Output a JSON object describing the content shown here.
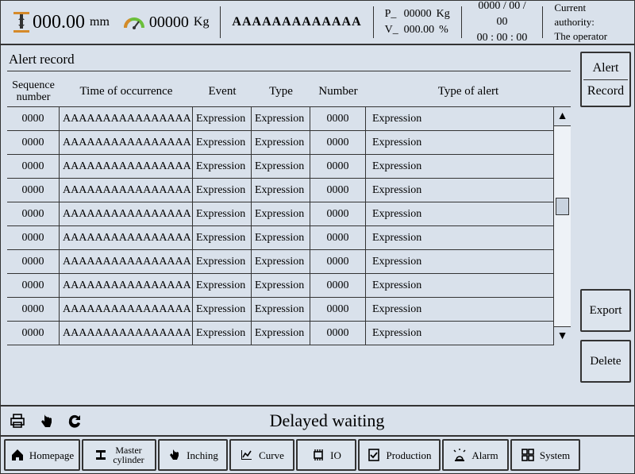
{
  "top": {
    "distance_value": "000.00",
    "distance_unit": "mm",
    "weight_value": "00000",
    "weight_unit": "Kg",
    "aaaa": "AAAAAAAAAAAAA",
    "p_label": "P_",
    "p_value": "00000",
    "p_unit": "Kg",
    "v_label": "V_",
    "v_value": "000.00",
    "v_unit": "%",
    "date": "0000 / 00 / 00",
    "time": "00 : 00 : 00",
    "auth_label": "Current authority:",
    "auth_value": "The operator"
  },
  "panel": {
    "title": "Alert record",
    "cols": {
      "seq1": "Sequence",
      "seq2": "number",
      "time": "Time of occurrence",
      "event": "Event",
      "type": "Type",
      "num": "Number",
      "alerttype": "Type of alert"
    },
    "rows": [
      {
        "seq": "0000",
        "time": "AAAAAAAAAAAAAAAA",
        "event": "Expression",
        "type": "Expression",
        "num": "0000",
        "alerttype": "Expression"
      },
      {
        "seq": "0000",
        "time": "AAAAAAAAAAAAAAAA",
        "event": "Expression",
        "type": "Expression",
        "num": "0000",
        "alerttype": "Expression"
      },
      {
        "seq": "0000",
        "time": "AAAAAAAAAAAAAAAA",
        "event": "Expression",
        "type": "Expression",
        "num": "0000",
        "alerttype": "Expression"
      },
      {
        "seq": "0000",
        "time": "AAAAAAAAAAAAAAAA",
        "event": "Expression",
        "type": "Expression",
        "num": "0000",
        "alerttype": "Expression"
      },
      {
        "seq": "0000",
        "time": "AAAAAAAAAAAAAAAA",
        "event": "Expression",
        "type": "Expression",
        "num": "0000",
        "alerttype": "Expression"
      },
      {
        "seq": "0000",
        "time": "AAAAAAAAAAAAAAAA",
        "event": "Expression",
        "type": "Expression",
        "num": "0000",
        "alerttype": "Expression"
      },
      {
        "seq": "0000",
        "time": "AAAAAAAAAAAAAAAA",
        "event": "Expression",
        "type": "Expression",
        "num": "0000",
        "alerttype": "Expression"
      },
      {
        "seq": "0000",
        "time": "AAAAAAAAAAAAAAAA",
        "event": "Expression",
        "type": "Expression",
        "num": "0000",
        "alerttype": "Expression"
      },
      {
        "seq": "0000",
        "time": "AAAAAAAAAAAAAAAA",
        "event": "Expression",
        "type": "Expression",
        "num": "0000",
        "alerttype": "Expression"
      },
      {
        "seq": "0000",
        "time": "AAAAAAAAAAAAAAAA",
        "event": "Expression",
        "type": "Expression",
        "num": "0000",
        "alerttype": "Expression"
      }
    ]
  },
  "side": {
    "alert": "Alert",
    "record": "Record",
    "export": "Export",
    "delete": "Delete"
  },
  "status": {
    "text": "Delayed waiting"
  },
  "nav": {
    "homepage": "Homepage",
    "master1": "Master",
    "master2": "cylinder",
    "inching": "Inching",
    "curve": "Curve",
    "io": "IO",
    "production": "Production",
    "alarm": "Alarm",
    "system": "System"
  },
  "colors": {
    "bg": "#d9e1eb",
    "border": "#333333",
    "gauge_orange": "#d58a2a",
    "gauge_green": "#6bbf3a"
  }
}
